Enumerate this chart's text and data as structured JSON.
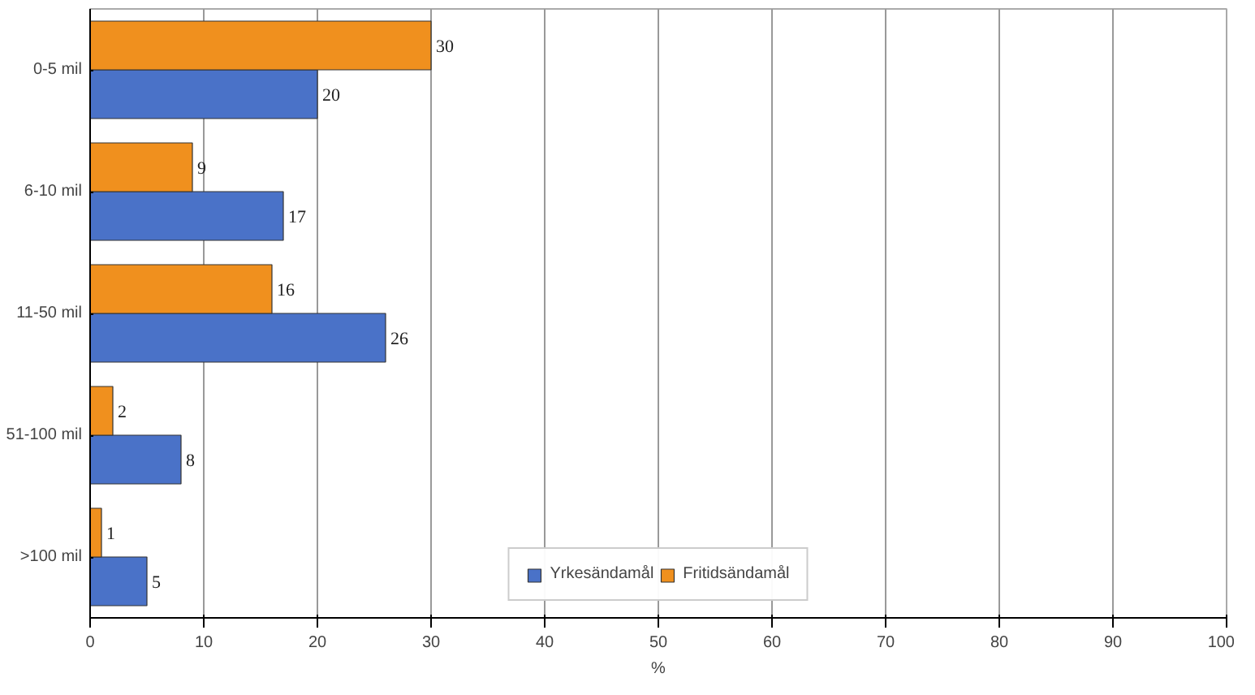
{
  "chart_data": {
    "type": "bar",
    "orientation": "horizontal",
    "categories": [
      "0-5 mil",
      "6-10 mil",
      "11-50 mil",
      "51-100 mil",
      ">100 mil"
    ],
    "series": [
      {
        "name": "Yrkesändamål",
        "color": "#4a72c8",
        "values": [
          20,
          17,
          26,
          8,
          5
        ]
      },
      {
        "name": "Fritidsändamål",
        "color": "#f0901e",
        "values": [
          30,
          9,
          16,
          2,
          1
        ]
      }
    ],
    "xlim": [
      0,
      100
    ],
    "xticks": [
      0,
      10,
      20,
      30,
      40,
      50,
      60,
      70,
      80,
      90,
      100
    ],
    "xlabel": "%",
    "grid": "x",
    "legend": "bottom",
    "data_labels": true
  }
}
